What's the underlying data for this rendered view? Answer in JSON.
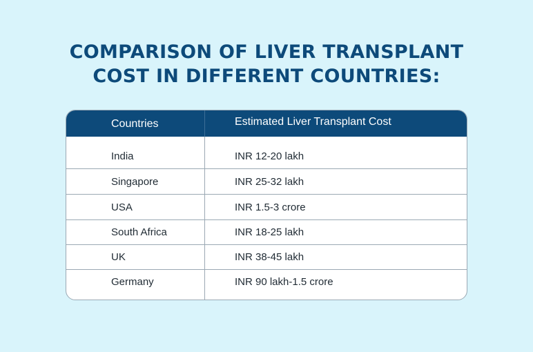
{
  "title": {
    "line1": "COMPARISON OF LIVER TRANSPLANT",
    "line2": "COST IN DIFFERENT COUNTRIES:"
  },
  "table": {
    "headers": [
      "Countries",
      "Estimated Liver Transplant Cost"
    ],
    "rows": [
      {
        "country": "India",
        "cost": "INR 12-20 lakh"
      },
      {
        "country": "Singapore",
        "cost": "INR 25-32 lakh"
      },
      {
        "country": "USA",
        "cost": "INR 1.5-3 crore"
      },
      {
        "country": "South Africa",
        "cost": "INR 18-25 lakh"
      },
      {
        "country": "UK",
        "cost": "INR 38-45 lakh"
      },
      {
        "country": "Germany",
        "cost": "INR 90 lakh-1.5 crore"
      }
    ]
  },
  "colors": {
    "background": "#d9f4fb",
    "header": "#0d4a7a",
    "title": "#0d4a7a"
  }
}
